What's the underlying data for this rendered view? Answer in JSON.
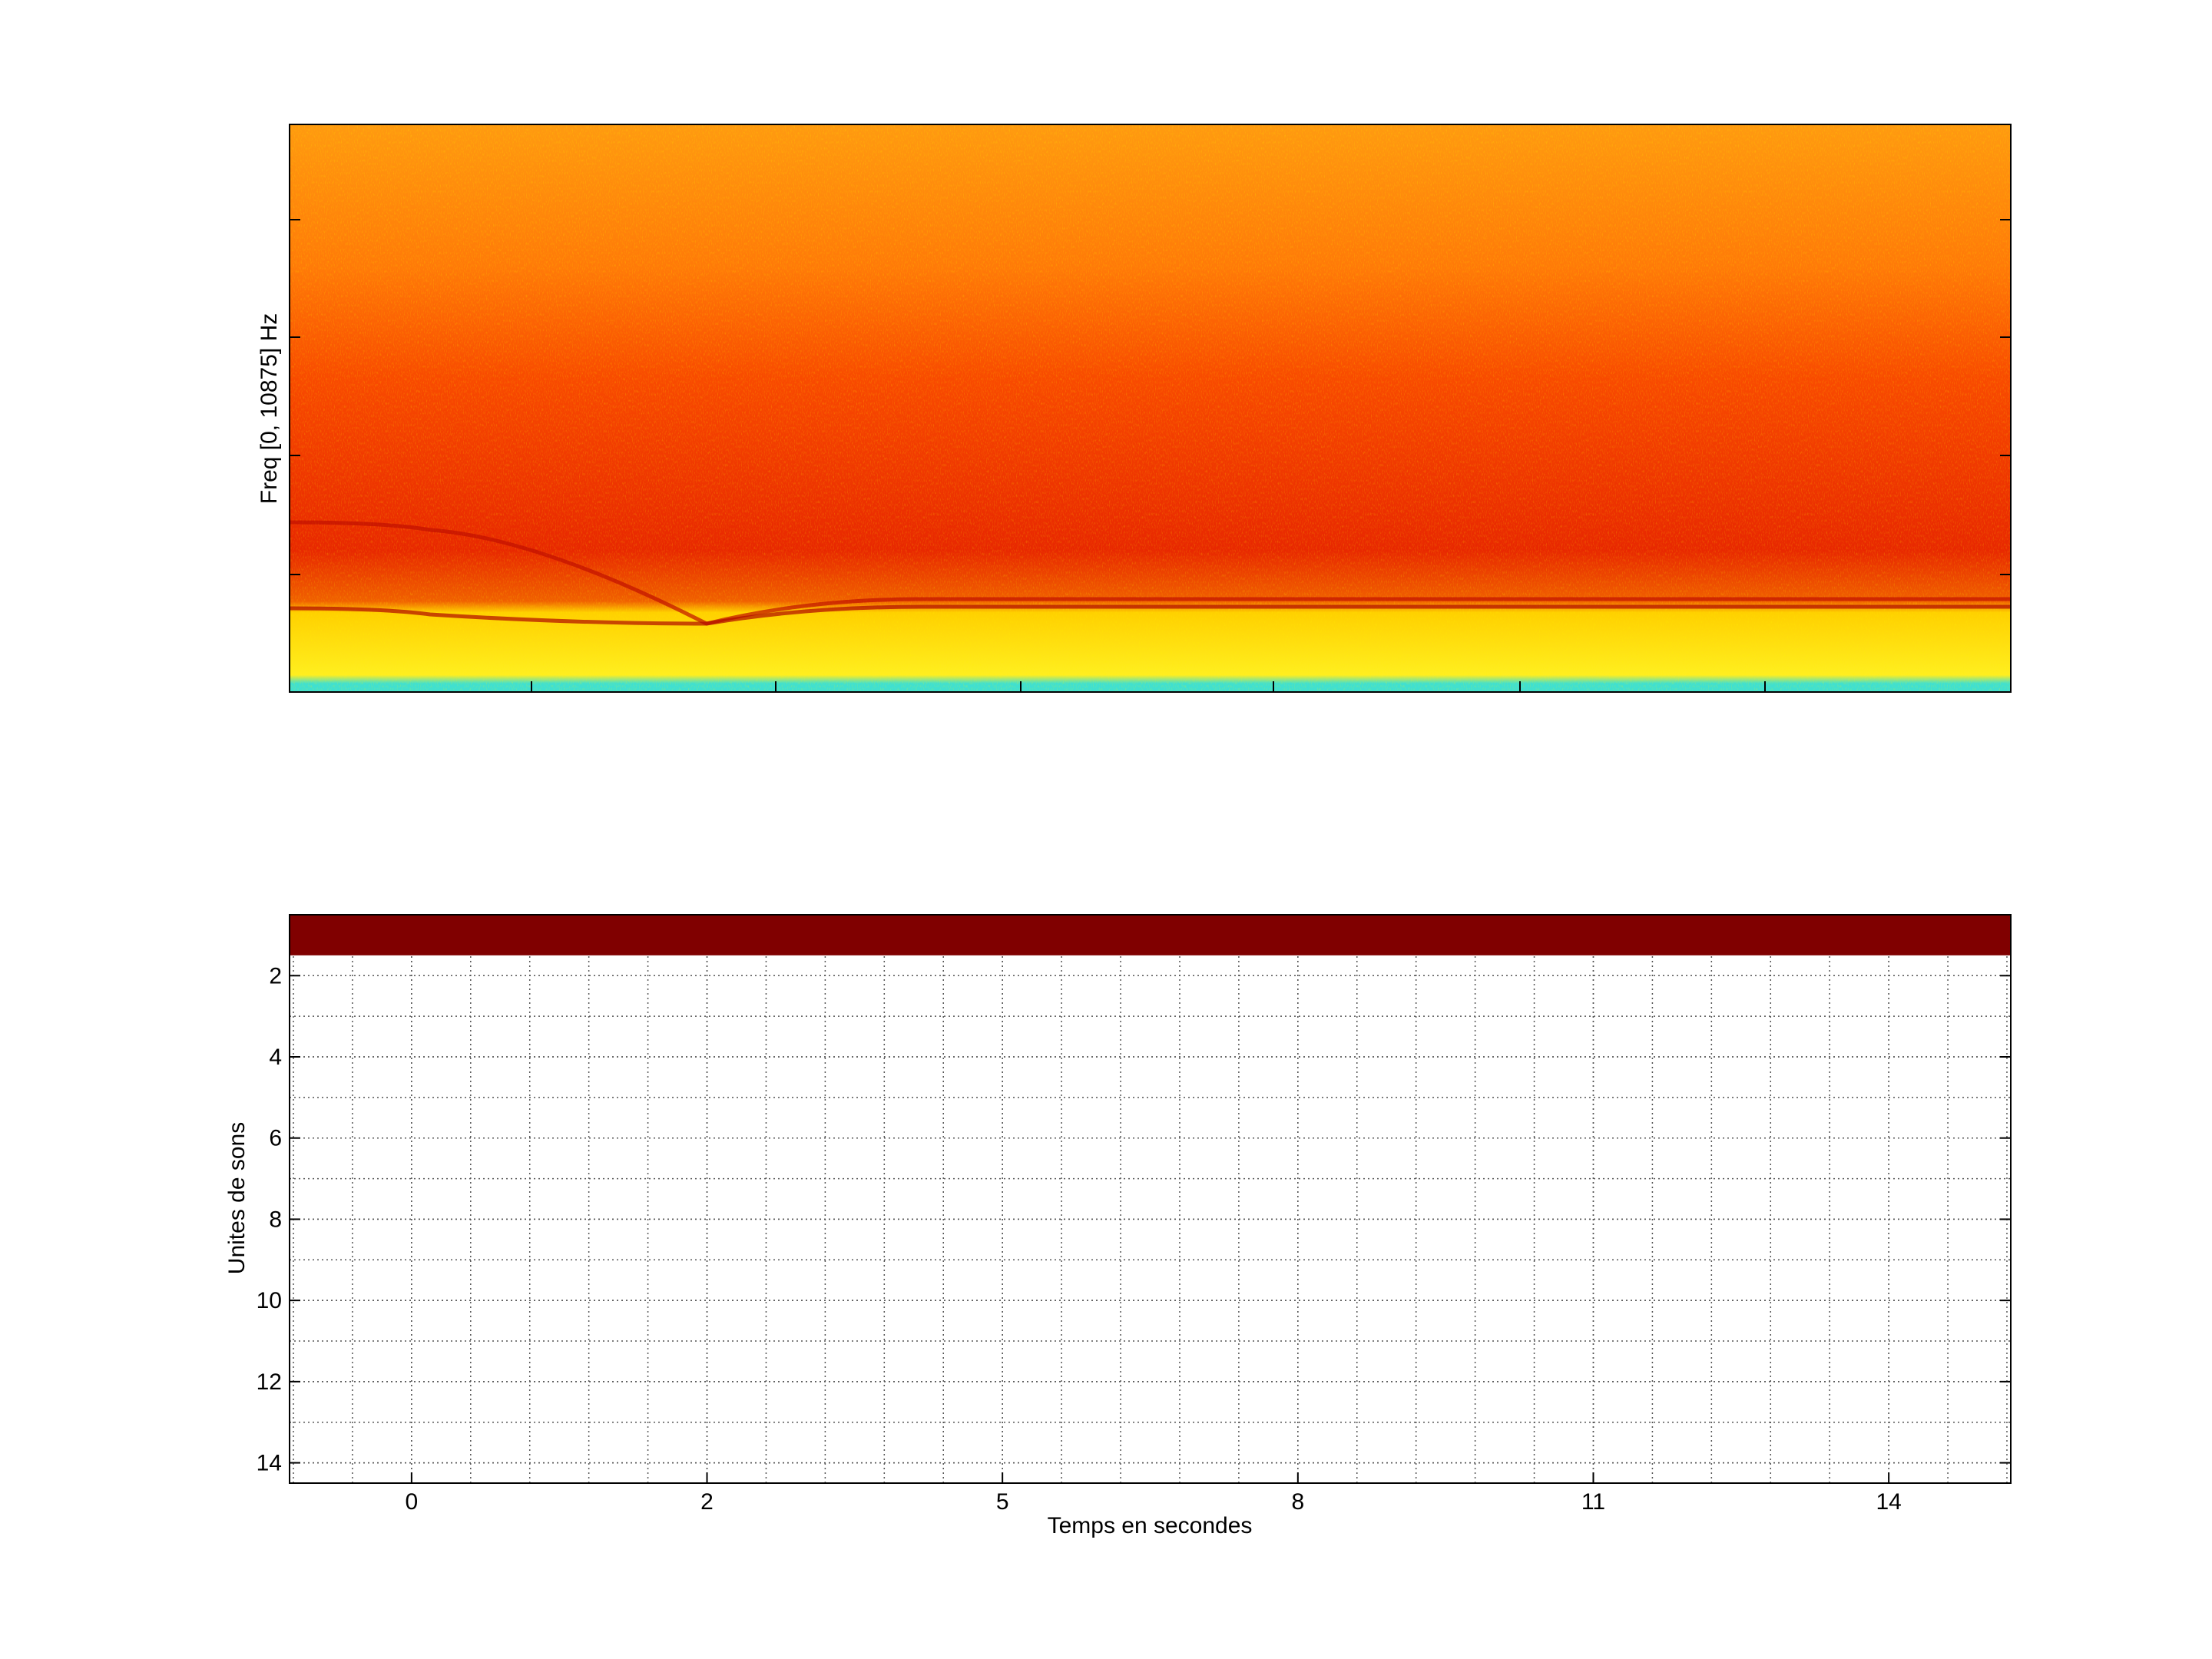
{
  "charts": [
    {
      "type": "spectrogram",
      "ylabel": "Freq [0, 10875] Hz"
    },
    {
      "type": "raster",
      "xlabel": "Temps en secondes",
      "ylabel": "Unites de sons",
      "xlim": [
        0.587,
        6.413
      ],
      "xticks": [
        {
          "value": 1,
          "label": "0"
        },
        {
          "value": 2,
          "label": "2"
        },
        {
          "value": 3,
          "label": "5"
        },
        {
          "value": 4,
          "label": "8"
        },
        {
          "value": 5,
          "label": "11"
        },
        {
          "value": 6,
          "label": "14"
        }
      ],
      "ylim": [
        0.5,
        14.5
      ],
      "yticks": [
        2,
        4,
        6,
        8,
        10,
        12,
        14
      ],
      "y_reversed": true,
      "rows": [
        1
      ],
      "color": "#800000",
      "grid": true,
      "minor_grid": true
    }
  ]
}
